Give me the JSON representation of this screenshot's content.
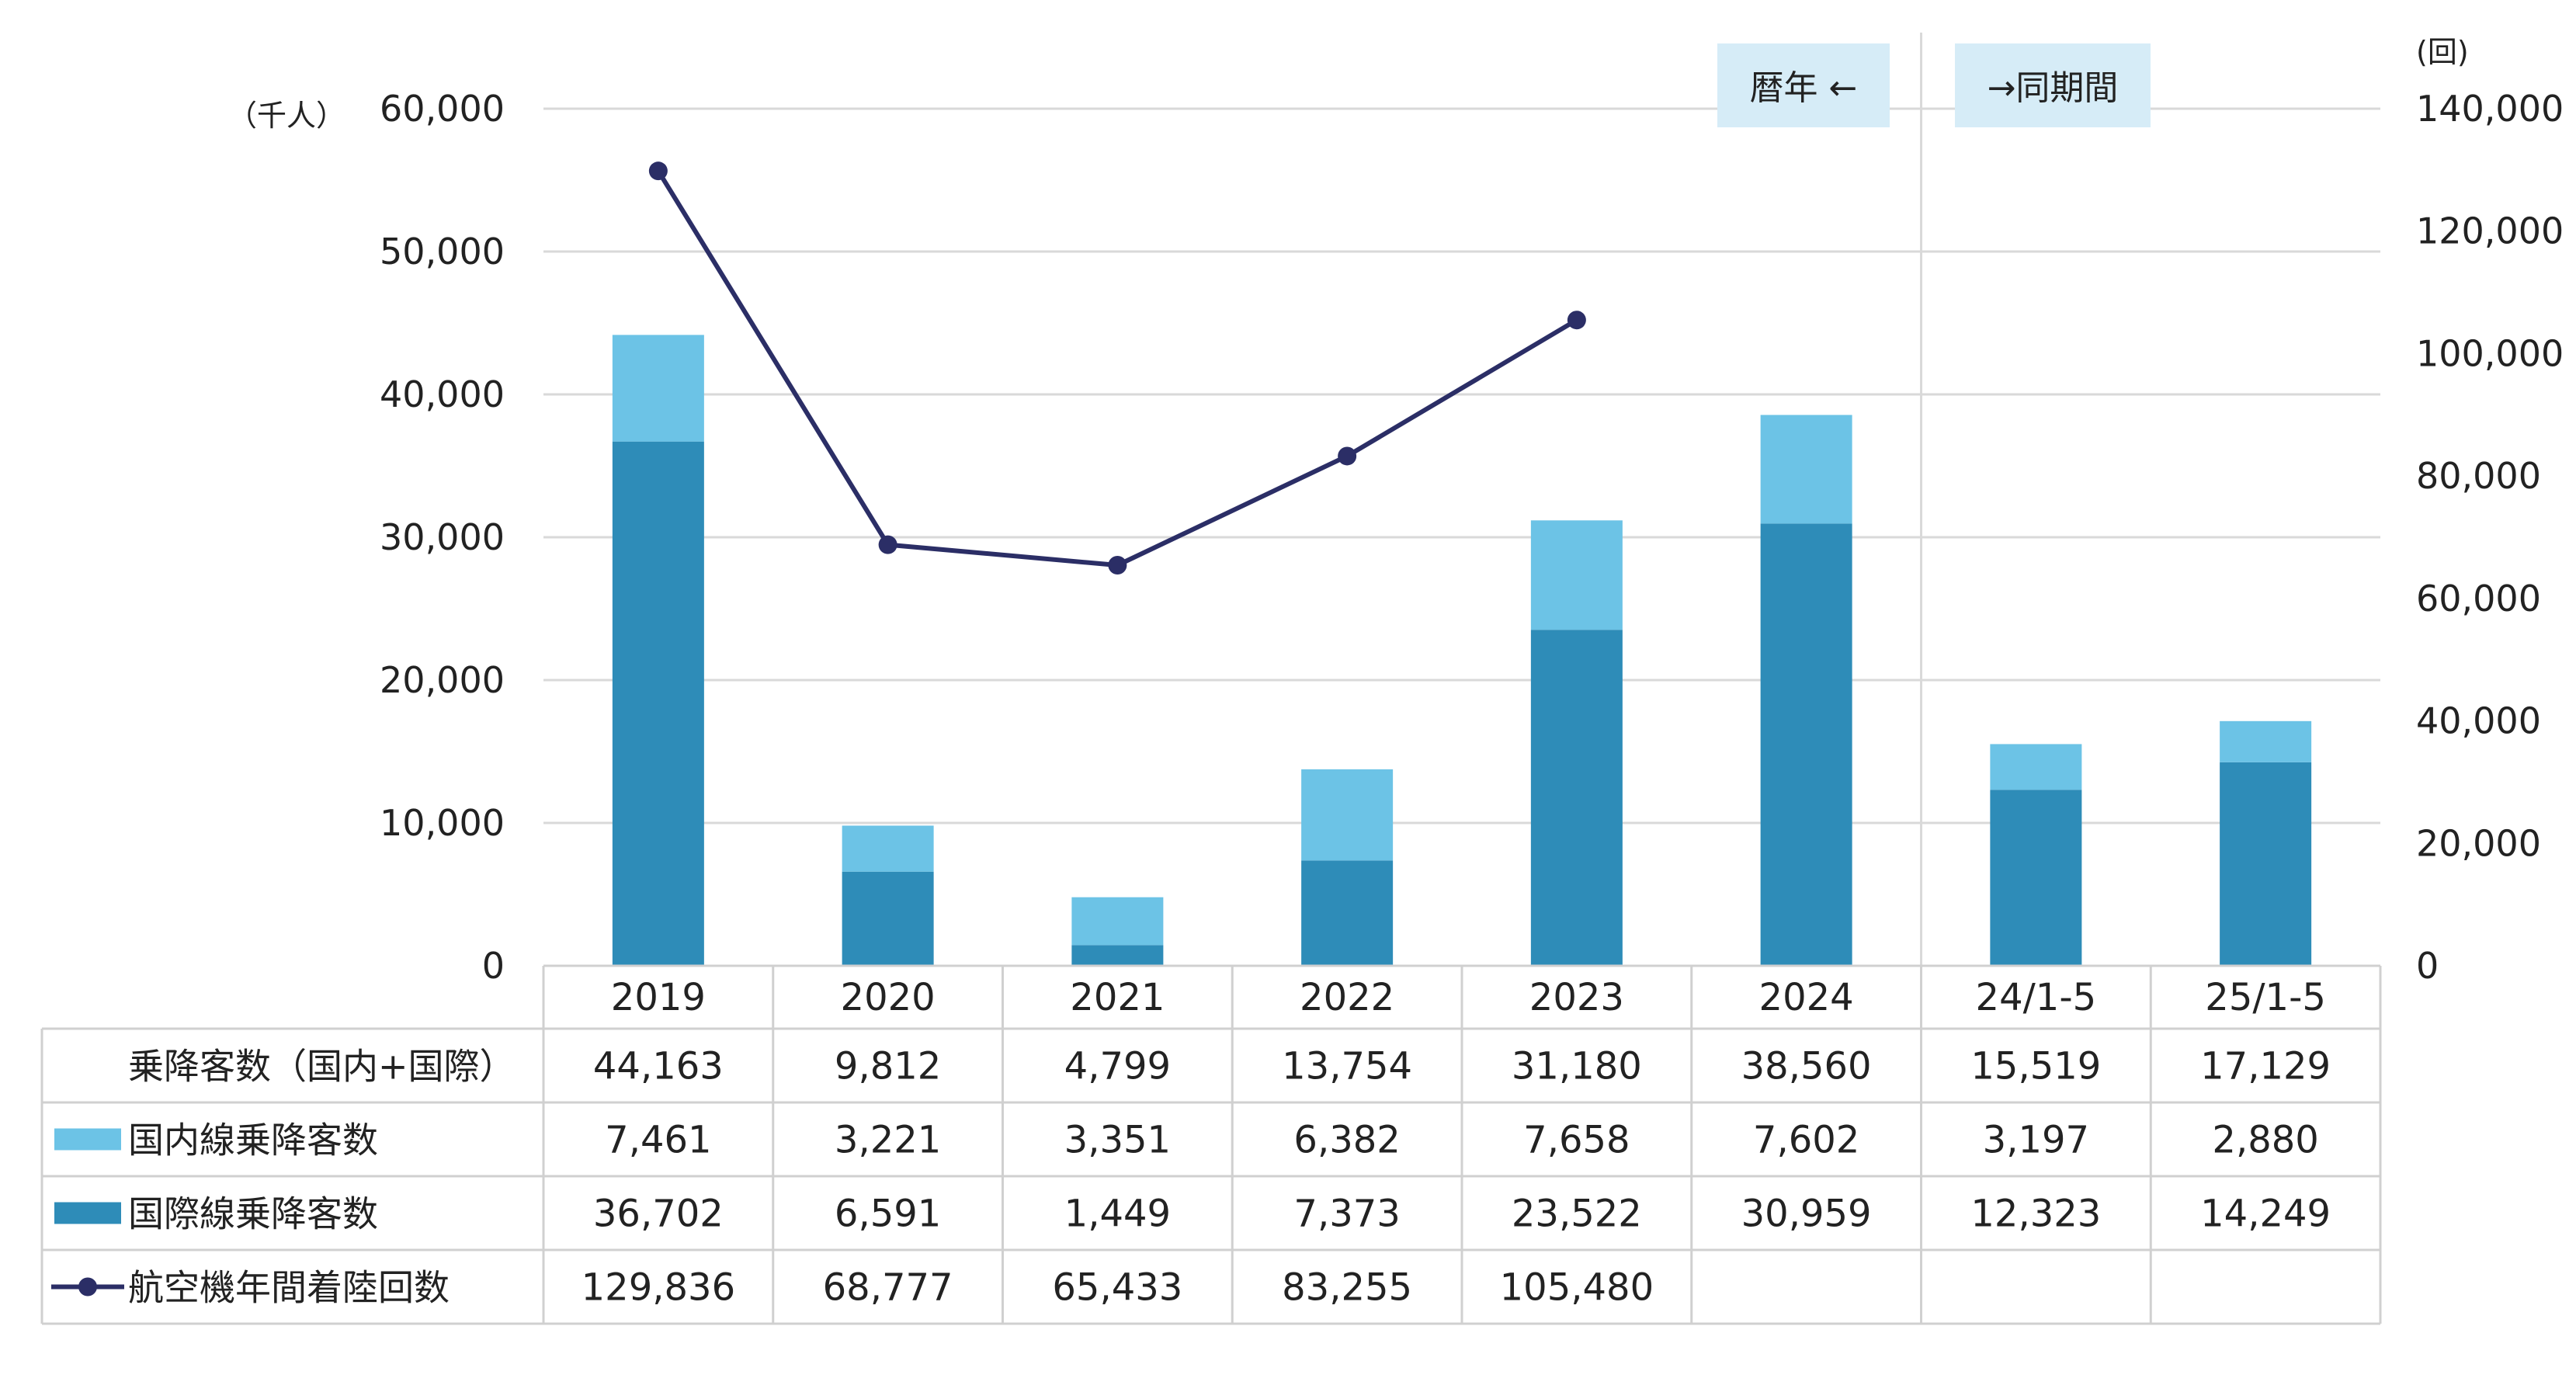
{
  "chart_data": {
    "type": "bar",
    "stacked": true,
    "categories": [
      "2019",
      "2020",
      "2021",
      "2022",
      "2023",
      "2024",
      "24/1-5",
      "25/1-5"
    ],
    "series": [
      {
        "name": "国際線乗降客数",
        "type": "bar",
        "axis": "left",
        "color": "#2e8cb8",
        "values": [
          36702,
          6591,
          1449,
          7373,
          23522,
          30959,
          12323,
          14249
        ],
        "labels": [
          "36,702",
          "6,591",
          "1,449",
          "7,373",
          "23,522",
          "30,959",
          "12,323",
          "14,249"
        ]
      },
      {
        "name": "国内線乗降客数",
        "type": "bar",
        "axis": "left",
        "color": "#6cc3e6",
        "values": [
          7461,
          3221,
          3351,
          6382,
          7658,
          7602,
          3197,
          2880
        ],
        "labels": [
          "7,461",
          "3,221",
          "3,351",
          "6,382",
          "7,658",
          "7,602",
          "3,197",
          "2,880"
        ]
      },
      {
        "name": "航空機年間着陸回数",
        "type": "line",
        "axis": "right",
        "color": "#2b2e66",
        "values": [
          129836,
          68777,
          65433,
          83255,
          105480,
          null,
          null,
          null
        ],
        "labels": [
          "129,836",
          "68,777",
          "65,433",
          "83,255",
          "105,480",
          "",
          "",
          ""
        ]
      }
    ],
    "totals": {
      "name": "乗降客数（国内+国際）",
      "labels": [
        "44,163",
        "9,812",
        "4,799",
        "13,754",
        "31,180",
        "38,560",
        "15,519",
        "17,129"
      ]
    },
    "y_left": {
      "unit": "（千人）",
      "min": 0,
      "max": 60000,
      "ticks": [
        "0",
        "10,000",
        "20,000",
        "30,000",
        "40,000",
        "50,000",
        "60,000"
      ]
    },
    "y_right": {
      "unit": "(回)",
      "min": 0,
      "max": 140000,
      "ticks": [
        "0",
        "20,000",
        "40,000",
        "60,000",
        "80,000",
        "100,000",
        "120,000",
        "140,000"
      ]
    },
    "annotations": {
      "calendar_year": "暦年 ←",
      "same_period": "→同期間"
    },
    "grid": true
  }
}
